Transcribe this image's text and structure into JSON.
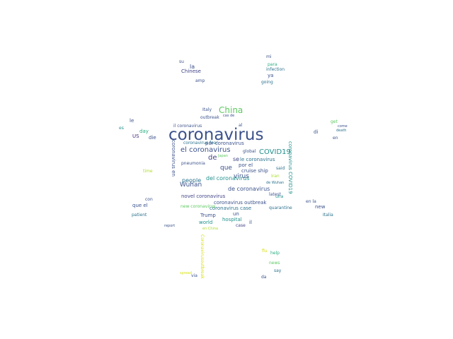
{
  "word_cloud": {
    "palette": {
      "deep_blue": "#3b528b",
      "navy": "#414487",
      "indigo": "#472d7b",
      "teal": "#2c728e",
      "sea": "#21918c",
      "green": "#27ad81",
      "light_green": "#5ec962",
      "lime": "#addc30",
      "yellow": "#d8e219"
    },
    "words": [
      {
        "text": "coronavirus",
        "color": "#3b528b"
      },
      {
        "text": "China",
        "color": "#5ec962"
      },
      {
        "text": "el coronavirus",
        "color": "#3b528b"
      },
      {
        "text": "COVID19",
        "color": "#21918c"
      },
      {
        "text": "virus",
        "color": "#3b528b"
      },
      {
        "text": "Wuhan",
        "color": "#3b528b"
      },
      {
        "text": "de",
        "color": "#414487"
      },
      {
        "text": "que",
        "color": "#3b528b"
      },
      {
        "text": "people",
        "color": "#2c728e"
      },
      {
        "text": "de coronavirus",
        "color": "#3b528b"
      },
      {
        "text": "del coronavirus",
        "color": "#21918c"
      },
      {
        "text": "novel coronavirus",
        "color": "#414487"
      },
      {
        "text": "coronavirus outbreak",
        "color": "#3b528b"
      },
      {
        "text": "coronavirus case",
        "color": "#2c728e"
      },
      {
        "text": "new",
        "color": "#3b528b"
      },
      {
        "text": "la",
        "color": "#3b528b"
      },
      {
        "text": "le",
        "color": "#3b528b"
      },
      {
        "text": "US",
        "color": "#472d7b"
      },
      {
        "text": "di",
        "color": "#3b528b"
      },
      {
        "text": "se",
        "color": "#414487"
      },
      {
        "text": "le coronavirus",
        "color": "#2c728e"
      },
      {
        "text": "il coronavirus",
        "color": "#3b528b"
      },
      {
        "text": "por coronavirus",
        "color": "#3b528b"
      },
      {
        "text": "coronavirus fear",
        "color": "#2c728e"
      },
      {
        "text": "outbreak",
        "color": "#3b528b"
      },
      {
        "text": "Chinese",
        "color": "#414487"
      },
      {
        "text": "para",
        "color": "#27ad81"
      },
      {
        "text": "infection",
        "color": "#2c728e"
      },
      {
        "text": "ya",
        "color": "#3b528b"
      },
      {
        "text": "going",
        "color": "#2c728e"
      },
      {
        "text": "amp",
        "color": "#3b528b"
      },
      {
        "text": "Italy",
        "color": "#3b528b"
      },
      {
        "text": "day",
        "color": "#27ad81"
      },
      {
        "text": "die",
        "color": "#3b528b"
      },
      {
        "text": "es",
        "color": "#21918c"
      },
      {
        "text": "en",
        "color": "#3b528b"
      },
      {
        "text": "al",
        "color": "#3b528b"
      },
      {
        "text": "un",
        "color": "#3b528b"
      },
      {
        "text": "il",
        "color": "#3b528b"
      },
      {
        "text": "por el",
        "color": "#3b528b"
      },
      {
        "text": "cruise ship",
        "color": "#3b528b"
      },
      {
        "text": "said",
        "color": "#2c728e"
      },
      {
        "text": "global",
        "color": "#3b528b"
      },
      {
        "text": "case",
        "color": "#414487"
      },
      {
        "text": "hospital",
        "color": "#21918c"
      },
      {
        "text": "world",
        "color": "#21918c"
      },
      {
        "text": "Trump",
        "color": "#3b528b"
      },
      {
        "text": "quarantine",
        "color": "#2c728e"
      },
      {
        "text": "latest",
        "color": "#3b528b"
      },
      {
        "text": "una",
        "color": "#21918c"
      },
      {
        "text": "que el",
        "color": "#3b528b"
      },
      {
        "text": "patient",
        "color": "#2c728e"
      },
      {
        "text": "con",
        "color": "#3b528b"
      },
      {
        "text": "en la",
        "color": "#3b528b"
      },
      {
        "text": "Italia",
        "color": "#2c728e"
      },
      {
        "text": "new coronavirus",
        "color": "#5ec962"
      },
      {
        "text": "pneumonia",
        "color": "#3b528b"
      },
      {
        "text": "death",
        "color": "#2c728e"
      },
      {
        "text": "help",
        "color": "#27ad81"
      },
      {
        "text": "say",
        "color": "#2c728e"
      },
      {
        "text": "via",
        "color": "#3b528b"
      },
      {
        "text": "da",
        "color": "#3b528b"
      },
      {
        "text": "flu",
        "color": "#d8e219"
      },
      {
        "text": "spread",
        "color": "#d8e219"
      },
      {
        "text": "time",
        "color": "#addc30"
      },
      {
        "text": "news",
        "color": "#5ec962"
      },
      {
        "text": "get",
        "color": "#5ec962"
      },
      {
        "text": "report",
        "color": "#3b528b"
      },
      {
        "text": "Japan",
        "color": "#5ec962"
      },
      {
        "text": "come",
        "color": "#3b528b"
      },
      {
        "text": "mi",
        "color": "#3b528b"
      },
      {
        "text": "su",
        "color": "#3b528b"
      },
      {
        "text": "en China",
        "color": "#addc30"
      },
      {
        "text": "de Wuhan",
        "color": "#2c728e"
      },
      {
        "text": "Iran",
        "color": "#addc30"
      },
      {
        "text": "cas de",
        "color": "#3b528b"
      },
      {
        "text": "coronavirus en",
        "color": "#3b528b"
      },
      {
        "text": "coronavirus COVID19",
        "color": "#21918c"
      },
      {
        "text": "Coronavirusoutbreak",
        "color": "#d8e219"
      }
    ]
  }
}
